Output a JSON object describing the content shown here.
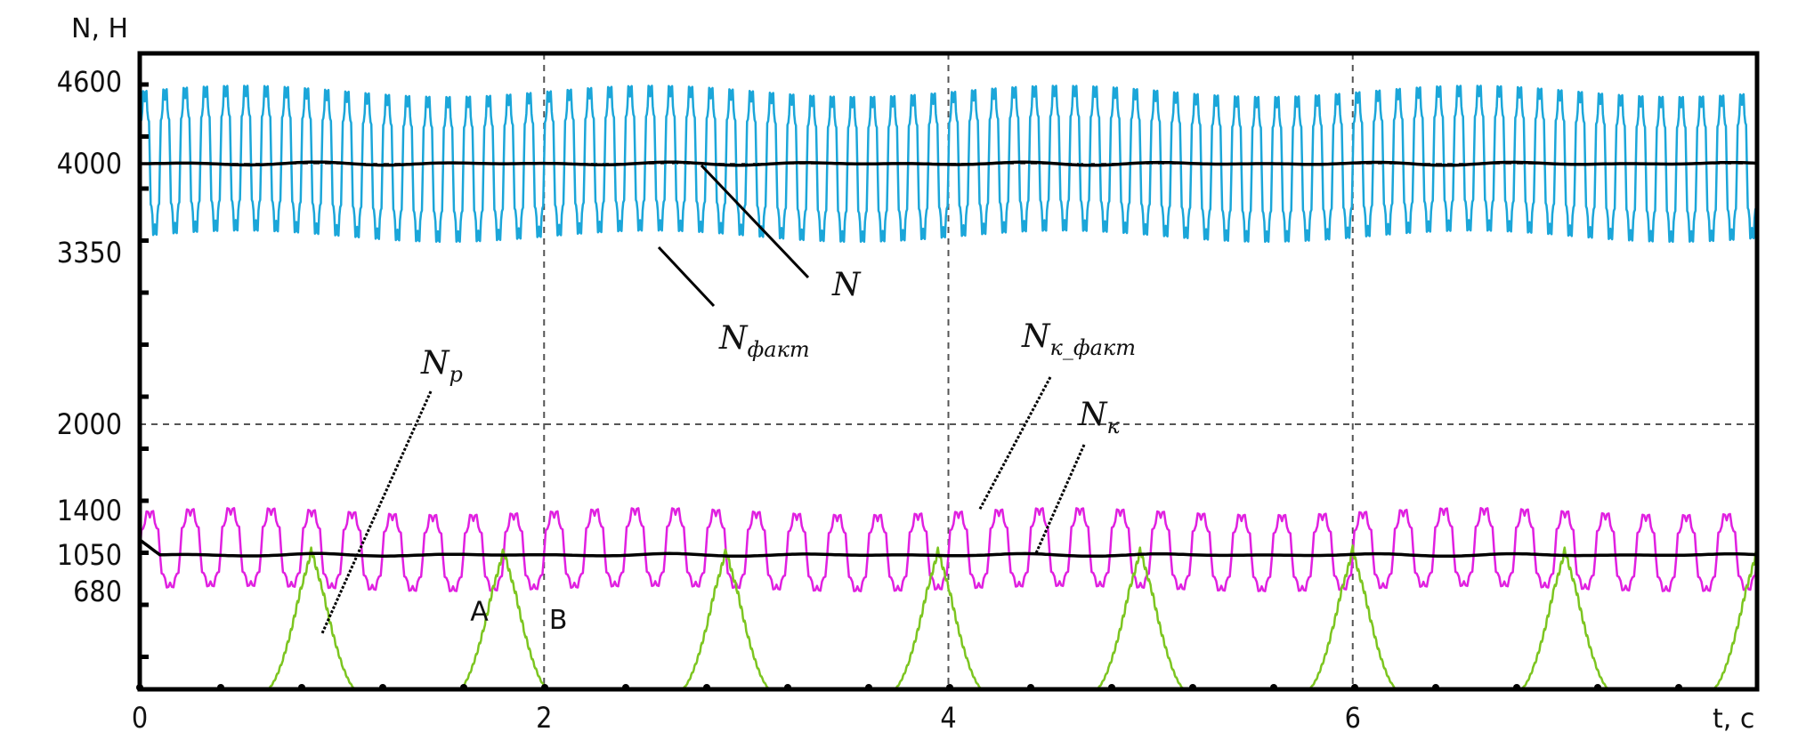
{
  "chart_data": {
    "type": "line",
    "ylabel": "N, H",
    "xlabel": "t, c",
    "xlim": [
      0,
      8
    ],
    "ylim": [
      0,
      4900
    ],
    "x_ticks": [
      0,
      2,
      4,
      6
    ],
    "y_ticks": [
      4600,
      4000,
      3350,
      2000,
      1400,
      1050,
      680
    ],
    "gridlines_x": [
      2,
      4,
      6
    ],
    "gridlines_y": [
      4000,
      2000
    ],
    "grid": "dashed",
    "series": [
      {
        "name": "N",
        "name_sub": "",
        "color": "#000000",
        "style": "constant",
        "mean": 4000,
        "amplitude": 0,
        "period": 0
      },
      {
        "name": "N",
        "name_sub": "факт",
        "color": "#1ba6d9",
        "style": "oscillation",
        "mean": 4000,
        "amplitude": 560,
        "period": 0.1
      },
      {
        "name": "N",
        "name_sub": "к_факт",
        "color": "#e020e0",
        "style": "oscillation",
        "mean": 1050,
        "amplitude": 360,
        "period": 0.2
      },
      {
        "name": "N",
        "name_sub": "к",
        "color": "#000000",
        "style": "constant",
        "mean": 1050,
        "amplitude": 0,
        "period": 0
      },
      {
        "name": "N",
        "name_sub": "p",
        "color": "#7cc520",
        "style": "pulses",
        "peak": 1100,
        "centers": [
          0.85,
          1.8,
          2.9,
          3.95,
          4.95,
          6.0,
          7.05,
          8.0
        ],
        "width": 0.22
      }
    ],
    "annotations": [
      {
        "text": "A",
        "x": 1.68,
        "y": 480
      },
      {
        "text": "B",
        "x": 2.07,
        "y": 420
      }
    ]
  }
}
